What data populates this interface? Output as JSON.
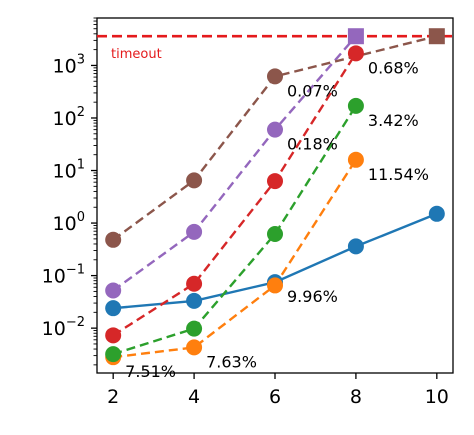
{
  "chart_data": {
    "type": "line",
    "x_ticks": [
      2,
      4,
      6,
      8,
      10
    ],
    "y_scale": "log",
    "xlim": [
      1.6,
      10.4
    ],
    "ylim": [
      0.0014,
      8000
    ],
    "y_ticks": [
      {
        "value": 0.01,
        "base": "10",
        "exp": "−2"
      },
      {
        "value": 0.1,
        "base": "10",
        "exp": "−1"
      },
      {
        "value": 1,
        "base": "10",
        "exp": "0"
      },
      {
        "value": 10,
        "base": "10",
        "exp": "1"
      },
      {
        "value": 100,
        "base": "10",
        "exp": "2"
      },
      {
        "value": 1000,
        "base": "10",
        "exp": "3"
      }
    ],
    "timeout": {
      "value": 3600,
      "label": "timeout",
      "color": "#e41a1c"
    },
    "series": [
      {
        "color": "#1f77b4",
        "style": "solid",
        "points": [
          {
            "x": 2,
            "y": 0.024
          },
          {
            "x": 4,
            "y": 0.033
          },
          {
            "x": 6,
            "y": 0.075
          },
          {
            "x": 8,
            "y": 0.36
          },
          {
            "x": 10,
            "y": 1.5
          }
        ]
      },
      {
        "color": "#ff7f0e",
        "style": "dashed",
        "points": [
          {
            "x": 2,
            "y": 0.0028
          },
          {
            "x": 4,
            "y": 0.0043
          },
          {
            "x": 6,
            "y": 0.065
          },
          {
            "x": 8,
            "y": 16
          }
        ]
      },
      {
        "color": "#2ca02c",
        "style": "dashed",
        "points": [
          {
            "x": 2,
            "y": 0.0032
          },
          {
            "x": 4,
            "y": 0.0098
          },
          {
            "x": 6,
            "y": 0.62
          },
          {
            "x": 8,
            "y": 170
          }
        ]
      },
      {
        "color": "#d62728",
        "style": "dashed",
        "points": [
          {
            "x": 2,
            "y": 0.0073
          },
          {
            "x": 4,
            "y": 0.07
          },
          {
            "x": 6,
            "y": 6.3
          },
          {
            "x": 8,
            "y": 1700
          }
        ]
      },
      {
        "color": "#9467bd",
        "style": "dashed",
        "points": [
          {
            "x": 2,
            "y": 0.052
          },
          {
            "x": 4,
            "y": 0.68
          },
          {
            "x": 6,
            "y": 60
          },
          {
            "x": 8,
            "y": 3600,
            "marker": "square"
          }
        ]
      },
      {
        "color": "#8c564b",
        "style": "dashed",
        "points": [
          {
            "x": 2,
            "y": 0.48
          },
          {
            "x": 4,
            "y": 6.5
          },
          {
            "x": 6,
            "y": 620
          },
          {
            "x": 10,
            "y": 3600,
            "marker": "square"
          }
        ]
      }
    ],
    "annotations": [
      {
        "text": "0.07%",
        "x": 6,
        "y": 620
      },
      {
        "text": "0.18%",
        "x": 6,
        "y": 60
      },
      {
        "text": "0.68%",
        "x": 8,
        "y": 1700
      },
      {
        "text": "3.42%",
        "x": 8,
        "y": 170
      },
      {
        "text": "11.54%",
        "x": 8,
        "y": 16
      },
      {
        "text": "9.96%",
        "x": 6,
        "y": 0.075
      },
      {
        "text": "7.51%",
        "x": 2,
        "y": 0.0028
      },
      {
        "text": "7.63%",
        "x": 4,
        "y": 0.0043
      }
    ]
  }
}
